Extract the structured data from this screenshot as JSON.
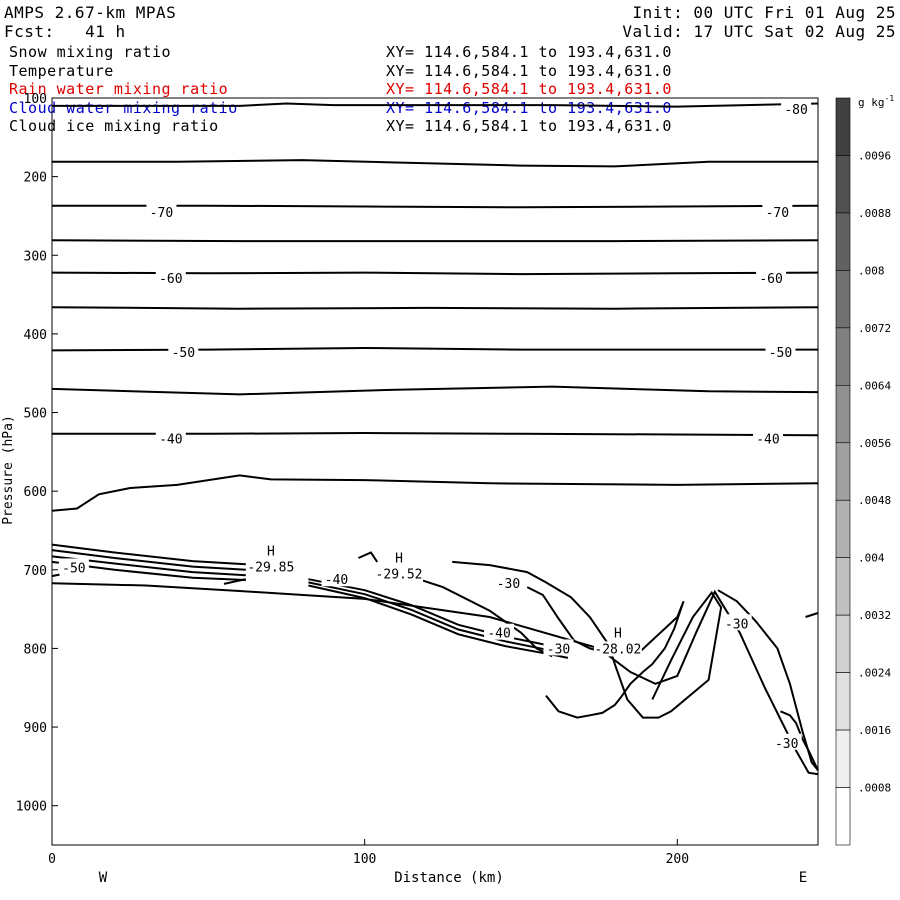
{
  "header": {
    "title": "AMPS 2.67-km MPAS",
    "forecast": "Fcst:   41 h",
    "init": "Init: 00 UTC Fri 01 Aug 25",
    "valid": "Valid: 17 UTC Sat 02 Aug 25"
  },
  "fields": [
    {
      "name": "Snow mixing ratio",
      "xy": "XY= 114.6,584.1 to 193.4,631.0",
      "color": "#000000"
    },
    {
      "name": "Temperature",
      "xy": "XY= 114.6,584.1 to 193.4,631.0",
      "color": "#000000"
    },
    {
      "name": "Rain water mixing ratio",
      "xy": "XY= 114.6,584.1 to 193.4,631.0",
      "color": "#e00000"
    },
    {
      "name": "Cloud water mixing ratio",
      "xy": "XY= 114.6,584.1 to 193.4,631.0",
      "color": "#0000cc"
    },
    {
      "name": "Cloud ice mixing ratio",
      "xy": "XY= 114.6,584.1 to 193.4,631.0",
      "color": "#000000"
    }
  ],
  "chart_data": {
    "type": "contour",
    "xlabel": "Distance (km)",
    "ylabel": "Pressure (hPa)",
    "xlim": [
      0,
      245
    ],
    "ylim": [
      100,
      1050
    ],
    "y_inverted": true,
    "x_ticks": [
      0,
      100,
      200
    ],
    "y_ticks": [
      100,
      200,
      300,
      400,
      500,
      600,
      700,
      800,
      900,
      1000
    ],
    "x_end_labels": {
      "left": "W",
      "right": "E"
    },
    "colorbar": {
      "unit": "g kg",
      "unit_exponent": "-1",
      "ticks": [
        ".0008",
        ".0016",
        ".0024",
        ".0032",
        ".004",
        ".0048",
        ".0056",
        ".0064",
        ".0072",
        ".008",
        ".0088",
        ".0096"
      ]
    },
    "isotherm_labels": [
      {
        "x": 238,
        "p": 114,
        "text": "-80"
      },
      {
        "x": 35,
        "p": 245,
        "text": "-70"
      },
      {
        "x": 232,
        "p": 245,
        "text": "-70"
      },
      {
        "x": 38,
        "p": 329,
        "text": "-60"
      },
      {
        "x": 230,
        "p": 329,
        "text": "-60"
      },
      {
        "x": 42,
        "p": 423,
        "text": "-50"
      },
      {
        "x": 233,
        "p": 423,
        "text": "-50"
      },
      {
        "x": 38,
        "p": 533,
        "text": "-40"
      },
      {
        "x": 229,
        "p": 533,
        "text": "-40"
      },
      {
        "x": 7,
        "p": 697,
        "text": "-50"
      },
      {
        "x": 91,
        "p": 712,
        "text": "-40"
      },
      {
        "x": 146,
        "p": 717,
        "text": "-30"
      },
      {
        "x": 143,
        "p": 780,
        "text": "-40"
      },
      {
        "x": 162,
        "p": 800,
        "text": "-30"
      },
      {
        "x": 219,
        "p": 768,
        "text": "-30"
      },
      {
        "x": 235,
        "p": 920,
        "text": "-30"
      }
    ],
    "highs": [
      {
        "x": 70,
        "p": 682,
        "marker": "H",
        "value": "-29.85"
      },
      {
        "x": 111,
        "p": 691,
        "marker": "H",
        "value": "-29.52"
      },
      {
        "x": 181,
        "p": 786,
        "marker": "H",
        "value": "-28.02"
      }
    ],
    "top_isotherms": [
      {
        "label": "-80",
        "x": [
          0,
          60,
          75,
          90,
          120,
          160,
          200,
          245
        ],
        "p": [
          110,
          110,
          107,
          109,
          109,
          109,
          111,
          107
        ]
      },
      {
        "label": "",
        "x": [
          0,
          40,
          80,
          120,
          150,
          180,
          210,
          245
        ],
        "p": [
          181,
          181,
          179,
          183,
          186,
          187,
          181,
          181
        ]
      },
      {
        "label": "-70",
        "x": [
          0,
          50,
          100,
          150,
          200,
          245
        ],
        "p": [
          237,
          237,
          238,
          239,
          238,
          237
        ]
      },
      {
        "label": "",
        "x": [
          0,
          60,
          120,
          180,
          245
        ],
        "p": [
          281,
          282,
          282,
          282,
          281
        ]
      },
      {
        "label": "-60",
        "x": [
          0,
          50,
          100,
          150,
          200,
          245
        ],
        "p": [
          322,
          323,
          322,
          324,
          323,
          322
        ]
      },
      {
        "label": "",
        "x": [
          0,
          60,
          120,
          180,
          245
        ],
        "p": [
          366,
          368,
          367,
          368,
          366
        ]
      },
      {
        "label": "-50",
        "x": [
          0,
          50,
          100,
          150,
          200,
          245
        ],
        "p": [
          421,
          420,
          418,
          420,
          420,
          420
        ]
      },
      {
        "label": "",
        "x": [
          0,
          60,
          110,
          160,
          210,
          245
        ],
        "p": [
          470,
          477,
          471,
          467,
          473,
          474
        ]
      },
      {
        "label": "-40",
        "x": [
          0,
          50,
          100,
          150,
          200,
          245
        ],
        "p": [
          527,
          527,
          526,
          527,
          528,
          529
        ]
      },
      {
        "label": "",
        "x": [
          0,
          8,
          15,
          25,
          40,
          60,
          70,
          100,
          140,
          200,
          245
        ],
        "p": [
          625,
          622,
          604,
          596,
          592,
          580,
          585,
          586,
          590,
          592,
          590
        ]
      }
    ]
  }
}
